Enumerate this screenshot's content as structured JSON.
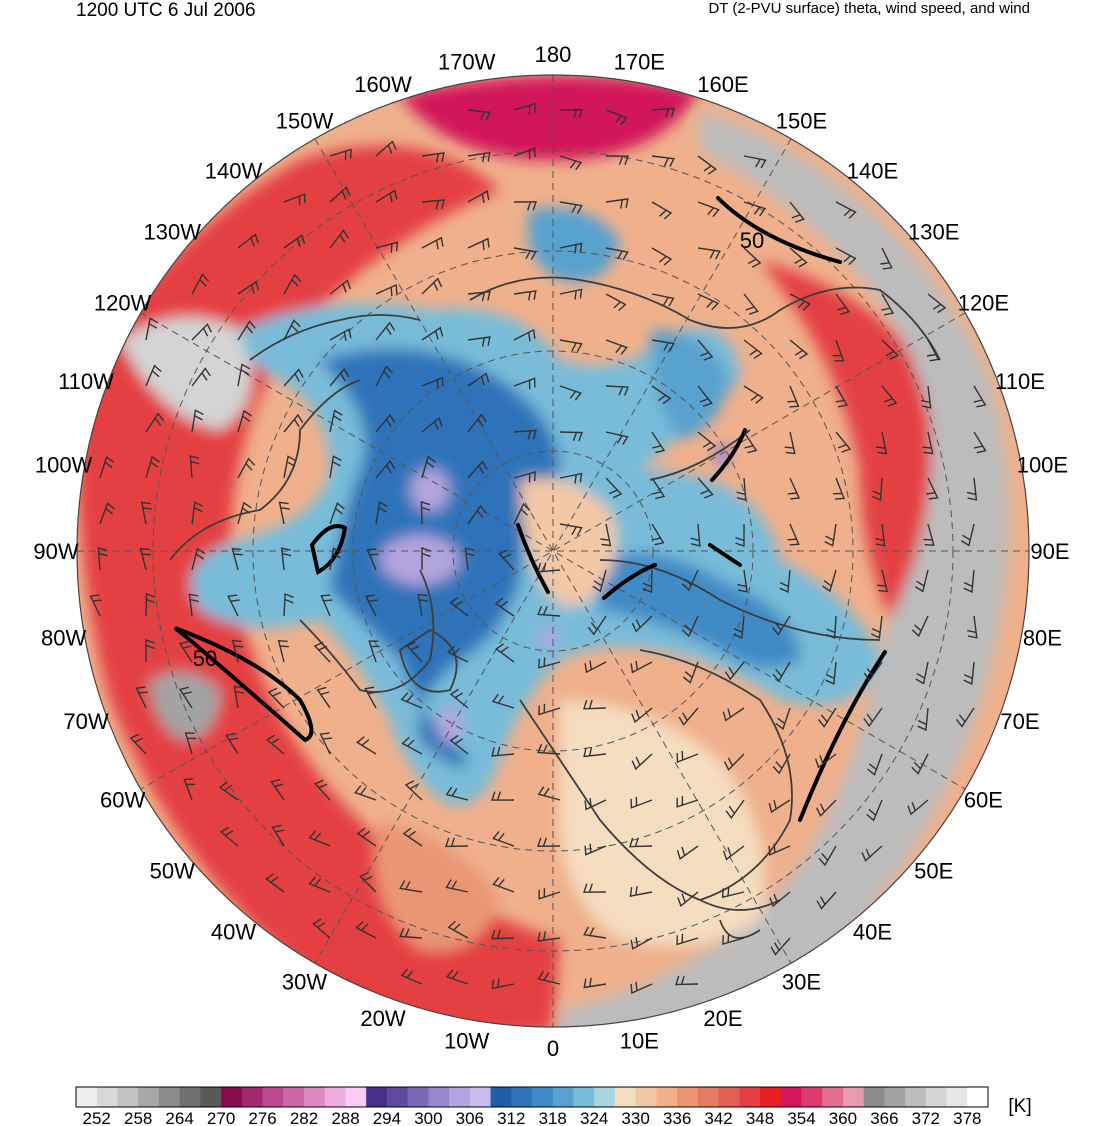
{
  "header": {
    "time": "1200 UTC 6 Jul 2006",
    "field": "DT (2-PVU surface) theta, wind speed, and wind"
  },
  "map": {
    "projection": "north polar stereographic",
    "longitude_labels": [
      "180",
      "170E",
      "160E",
      "150E",
      "140E",
      "130E",
      "120E",
      "110E",
      "100E",
      "90E",
      "80E",
      "70E",
      "60E",
      "50E",
      "40E",
      "30E",
      "20E",
      "10E",
      "0",
      "10W",
      "20W",
      "30W",
      "40W",
      "50W",
      "60W",
      "70W",
      "80W",
      "90W",
      "100W",
      "110W",
      "120W",
      "130W",
      "140W",
      "150W",
      "160W",
      "170W"
    ],
    "jet_contour_labels": [
      "50",
      "50"
    ]
  },
  "colorbar": {
    "unit": "[K]",
    "tick_labels": [
      "252",
      "258",
      "264",
      "270",
      "276",
      "282",
      "288",
      "294",
      "300",
      "306",
      "312",
      "318",
      "324",
      "330",
      "336",
      "342",
      "348",
      "354",
      "360",
      "366",
      "372",
      "378"
    ],
    "colors": [
      "#efefef",
      "#d9d9d9",
      "#c4c4c4",
      "#a8a8a8",
      "#8c8c8c",
      "#6f6f6f",
      "#595959",
      "#8a0a4a",
      "#a32a6e",
      "#ba4a8e",
      "#cc68a6",
      "#dc8ac0",
      "#ecaedc",
      "#f9ccf4",
      "#4a2f8a",
      "#5f4aa0",
      "#7a68b6",
      "#9886cc",
      "#b2a4de",
      "#c8bcec",
      "#1f5fa8",
      "#2f73b9",
      "#3f8ac6",
      "#58a2cf",
      "#78bcd9",
      "#a6d6e1",
      "#f5ddc0",
      "#f3c8a6",
      "#efb08b",
      "#ea9674",
      "#e47b62",
      "#e05f52",
      "#e43f42",
      "#ea1e22",
      "#d2185a",
      "#dc3c72",
      "#e46c8e",
      "#e99aae",
      "#8c8c8c",
      "#a3a3a3",
      "#bcbcbc",
      "#d4d4d4",
      "#e6e6e6",
      "#ffffff"
    ]
  }
}
